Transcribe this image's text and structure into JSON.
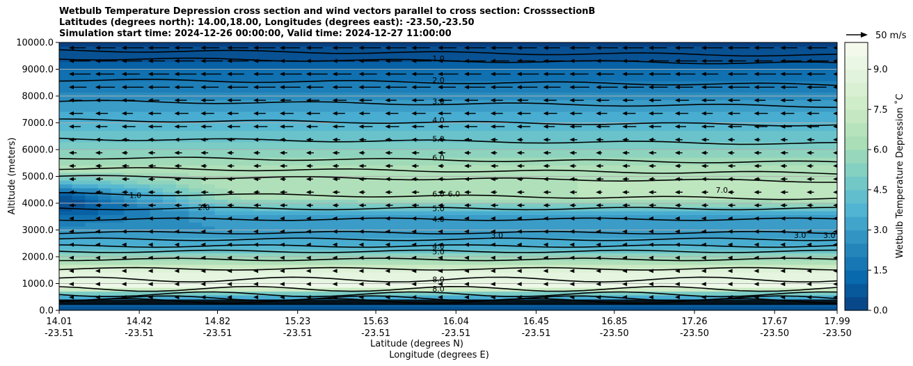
{
  "chart_data": {
    "type": "heatmap",
    "title_lines": [
      "Wetbulb Temperature Depression cross section and wind vectors parallel to cross section: CrosssectionB",
      "Latitudes (degrees north): 14.00,18.00, Longitudes (degrees east): -23.50,-23.50",
      "Simulation start time: 2024-12-26 00:00:00, Valid time: 2024-12-27 11:00:00"
    ],
    "ylabel": "Altitude (meters)",
    "xlabel_lat": "Latitude (degrees N)",
    "xlabel_lon": "Longitude (degrees E)",
    "ylim": [
      0,
      10000
    ],
    "xlim": [
      14.01,
      17.99
    ],
    "y_ticks": [
      "0.0",
      "1000.0",
      "2000.0",
      "3000.0",
      "4000.0",
      "5000.0",
      "6000.0",
      "7000.0",
      "8000.0",
      "9000.0",
      "10000.0"
    ],
    "x_ticks": [
      {
        "lat": "14.01",
        "lon": "-23.51"
      },
      {
        "lat": "14.42",
        "lon": "-23.51"
      },
      {
        "lat": "14.82",
        "lon": "-23.51"
      },
      {
        "lat": "15.23",
        "lon": "-23.51"
      },
      {
        "lat": "15.63",
        "lon": "-23.51"
      },
      {
        "lat": "16.04",
        "lon": "-23.51"
      },
      {
        "lat": "16.45",
        "lon": "-23.51"
      },
      {
        "lat": "16.85",
        "lon": "-23.50"
      },
      {
        "lat": "17.26",
        "lon": "-23.50"
      },
      {
        "lat": "17.67",
        "lon": "-23.50"
      },
      {
        "lat": "17.99",
        "lon": "-23.50"
      }
    ],
    "grid": true,
    "colorbar": {
      "label": "Wetbulb Temperature Depression ˚C",
      "range": [
        0,
        10
      ],
      "ticks": [
        "0.0",
        "1.5",
        "3.0",
        "4.5",
        "6.0",
        "7.5",
        "9.0"
      ]
    },
    "wind_reference": "50 m/s",
    "contour_labels": [
      {
        "text": "1.0",
        "lat": 15.95,
        "alt": 9400
      },
      {
        "text": "2.0",
        "lat": 15.95,
        "alt": 8600
      },
      {
        "text": "3.0",
        "lat": 15.95,
        "alt": 7800
      },
      {
        "text": "4.0",
        "lat": 15.95,
        "alt": 7100
      },
      {
        "text": "5.0",
        "lat": 15.95,
        "alt": 6400
      },
      {
        "text": "6.0",
        "lat": 15.95,
        "alt": 5700
      },
      {
        "text": "6.0",
        "lat": 15.95,
        "alt": 4350
      },
      {
        "text": "6.0",
        "lat": 16.03,
        "alt": 4350
      },
      {
        "text": "5.0",
        "lat": 15.95,
        "alt": 3800
      },
      {
        "text": "4.0",
        "lat": 15.95,
        "alt": 3400
      },
      {
        "text": "4.0",
        "lat": 15.95,
        "alt": 2400
      },
      {
        "text": "5.0",
        "lat": 15.95,
        "alt": 2200
      },
      {
        "text": "8.0",
        "lat": 15.95,
        "alt": 1150
      },
      {
        "text": "8.0",
        "lat": 15.95,
        "alt": 800
      },
      {
        "text": "1.0",
        "lat": 14.4,
        "alt": 4300
      },
      {
        "text": "2.0",
        "lat": 14.75,
        "alt": 3850
      },
      {
        "text": "3.0",
        "lat": 16.25,
        "alt": 2800
      },
      {
        "text": "7.0",
        "lat": 17.4,
        "alt": 4500
      },
      {
        "text": "3.0",
        "lat": 17.8,
        "alt": 2800
      },
      {
        "text": "3.0",
        "lat": 17.95,
        "alt": 2800
      }
    ]
  }
}
